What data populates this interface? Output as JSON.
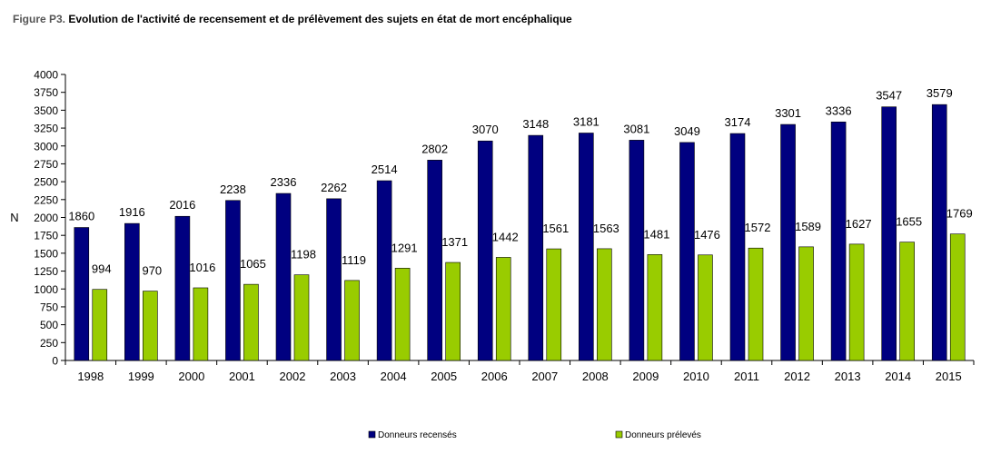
{
  "figure": {
    "label": "Figure P3.",
    "title": "Evolution de l'activité de recensement et de prélèvement des sujets en état de mort encéphalique"
  },
  "chart_data": {
    "type": "bar",
    "title": "Evolution de l'activité de recensement et de prélèvement des sujets en état de mort encéphalique",
    "xlabel": "",
    "ylabel": "N",
    "ylim": [
      0,
      4000
    ],
    "yticks": [
      0,
      250,
      500,
      750,
      1000,
      1250,
      1500,
      1750,
      2000,
      2250,
      2500,
      2750,
      3000,
      3250,
      3500,
      3750,
      4000
    ],
    "grid": false,
    "legend_position": "bottom",
    "categories": [
      "1998",
      "1999",
      "2000",
      "2001",
      "2002",
      "2003",
      "2004",
      "2005",
      "2006",
      "2007",
      "2008",
      "2009",
      "2010",
      "2011",
      "2012",
      "2013",
      "2014",
      "2015"
    ],
    "series": [
      {
        "name": "Donneurs recensés",
        "color": "#000080",
        "values": [
          1860,
          1916,
          2016,
          2238,
          2336,
          2262,
          2514,
          2802,
          3070,
          3148,
          3181,
          3081,
          3049,
          3174,
          3301,
          3336,
          3547,
          3579
        ]
      },
      {
        "name": "Donneurs prélevés",
        "color": "#99CC00",
        "values": [
          994,
          970,
          1016,
          1065,
          1198,
          1119,
          1291,
          1371,
          1442,
          1561,
          1563,
          1481,
          1476,
          1572,
          1589,
          1627,
          1655,
          1769
        ]
      }
    ]
  }
}
